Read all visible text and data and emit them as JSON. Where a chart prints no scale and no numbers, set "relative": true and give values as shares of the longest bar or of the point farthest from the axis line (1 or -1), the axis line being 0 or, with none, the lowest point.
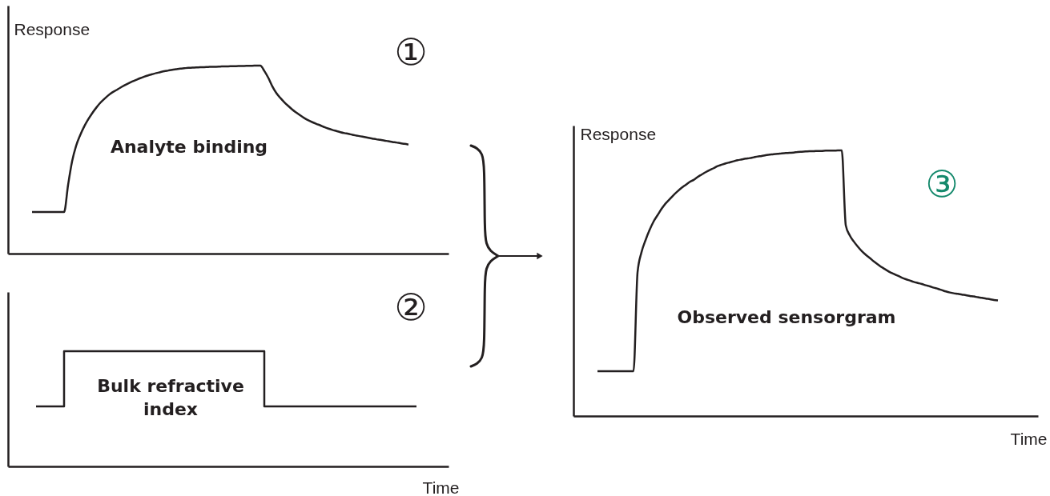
{
  "chart_data": [
    {
      "type": "line",
      "relative": true,
      "tick_labels": false,
      "ylabel": "Response",
      "annotations": [
        "①",
        "Analyte binding"
      ],
      "categories": [
        null,
        null,
        null,
        null,
        null,
        null,
        null,
        null,
        null,
        null,
        null,
        null,
        null,
        null,
        null,
        null,
        null,
        null,
        null,
        null,
        null,
        null,
        null,
        null,
        null,
        null,
        null,
        null,
        null,
        null,
        null,
        null,
        null,
        null,
        null,
        null,
        null,
        null,
        null,
        null,
        null,
        null,
        null,
        null,
        null,
        null,
        null,
        null,
        null,
        null,
        null,
        null,
        null,
        null,
        null,
        null,
        null,
        null,
        null,
        null,
        null,
        null,
        null,
        null,
        null,
        null,
        null,
        null,
        null,
        null,
        null,
        null,
        null,
        null,
        null,
        null,
        null,
        null,
        null,
        null,
        null,
        null,
        null,
        null,
        null,
        null,
        null,
        null,
        null,
        null,
        null,
        null,
        null,
        null,
        null,
        null,
        null,
        null,
        null,
        null,
        null,
        null,
        null,
        null,
        null,
        null,
        null,
        null,
        null,
        null,
        null
      ],
      "series": [
        {
          "color": "#231f20",
          "values": [
            null,
            null,
            null,
            null,
            null,
            null,
            0.221,
            0.221,
            0.221,
            0.221,
            0.221,
            0.221,
            0.221,
            0.221,
            0.221,
            0.365,
            0.49,
            0.573,
            0.629,
            0.675,
            0.713,
            0.746,
            0.775,
            0.801,
            0.822,
            0.841,
            0.857,
            0.869,
            0.882,
            0.894,
            0.905,
            0.915,
            0.924,
            0.933,
            0.941,
            0.948,
            0.954,
            0.96,
            0.965,
            0.97,
            0.974,
            0.978,
            0.981,
            0.984,
            0.986,
            0.988,
            0.989,
            0.99,
            0.991,
            0.992,
            0.993,
            0.994,
            0.994,
            0.995,
            0.996,
            0.996,
            0.997,
            0.997,
            0.998,
            0.998,
            0.999,
            0.999,
            1,
            1,
            0.972,
            0.935,
            0.89,
            0.854,
            0.828,
            0.805,
            0.785,
            0.766,
            0.75,
            0.735,
            0.721,
            0.709,
            0.699,
            0.69,
            0.682,
            0.673,
            0.665,
            0.658,
            0.652,
            0.646,
            0.641,
            0.637,
            0.632,
            0.628,
            0.624,
            0.62,
            0.616,
            0.612,
            0.608,
            0.605,
            0.601,
            0.598,
            0.594,
            0.591,
            0.587,
            0.584,
            0.58,
            null,
            null,
            null,
            null,
            null,
            null,
            null,
            null,
            null,
            null
          ]
        }
      ]
    },
    {
      "type": "step",
      "relative": true,
      "tick_labels": false,
      "xlabel": "Time",
      "annotations": [
        "②",
        "Bulk refractive\nindex"
      ],
      "categories": [
        null,
        null,
        null,
        null,
        null,
        null,
        null,
        null,
        null,
        null,
        null,
        null,
        null,
        null,
        null,
        null,
        null,
        null,
        null,
        null,
        null,
        null,
        null,
        null,
        null,
        null,
        null,
        null,
        null,
        null,
        null,
        null,
        null,
        null,
        null,
        null,
        null,
        null,
        null,
        null,
        null,
        null,
        null,
        null,
        null,
        null,
        null,
        null,
        null,
        null,
        null,
        null,
        null,
        null,
        null,
        null,
        null,
        null,
        null,
        null,
        null,
        null,
        null,
        null,
        null,
        null,
        null,
        null,
        null,
        null,
        null,
        null,
        null,
        null,
        null,
        null,
        null,
        null,
        null,
        null,
        null,
        null,
        null,
        null,
        null,
        null,
        null,
        null,
        null,
        null,
        null,
        null,
        null,
        null,
        null,
        null,
        null,
        null,
        null,
        null,
        null,
        null,
        null,
        null,
        null,
        null,
        null,
        null,
        null,
        null,
        null
      ],
      "series": [
        {
          "color": "#231f20",
          "values": [
            null,
            null,
            null,
            null,
            null,
            null,
            null,
            0.52,
            0.52,
            0.52,
            0.52,
            0.52,
            0.52,
            0.52,
            1,
            1,
            1,
            1,
            1,
            1,
            1,
            1,
            1,
            1,
            1,
            1,
            1,
            1,
            1,
            1,
            1,
            1,
            1,
            1,
            1,
            1,
            1,
            1,
            1,
            1,
            1,
            1,
            1,
            1,
            1,
            1,
            1,
            1,
            1,
            1,
            1,
            1,
            1,
            1,
            1,
            1,
            1,
            1,
            1,
            1,
            1,
            1,
            1,
            1,
            0.52,
            0.52,
            0.52,
            0.52,
            0.52,
            0.52,
            0.52,
            0.52,
            0.52,
            0.52,
            0.52,
            0.52,
            0.52,
            0.52,
            0.52,
            0.52,
            0.52,
            0.52,
            0.52,
            0.52,
            0.52,
            0.52,
            0.52,
            0.52,
            0.52,
            0.52,
            0.52,
            0.52,
            0.52,
            0.52,
            0.52,
            0.52,
            0.52,
            0.52,
            0.52,
            0.52,
            0.52,
            0.52,
            0.52,
            null,
            null,
            null,
            null,
            null,
            null,
            null,
            null
          ]
        }
      ]
    },
    {
      "type": "line",
      "relative": true,
      "tick_labels": false,
      "ylabel": "Response",
      "xlabel": "Time",
      "annotations": [
        "③",
        "Observed sensorgram"
      ],
      "categories": [
        null,
        null,
        null,
        null,
        null,
        null,
        null,
        null,
        null,
        null,
        null,
        null,
        null,
        null,
        null,
        null,
        null,
        null,
        null,
        null,
        null,
        null,
        null,
        null,
        null,
        null,
        null,
        null,
        null,
        null,
        null,
        null,
        null,
        null,
        null,
        null,
        null,
        null,
        null,
        null,
        null,
        null,
        null,
        null,
        null,
        null,
        null,
        null,
        null,
        null,
        null,
        null,
        null,
        null,
        null,
        null,
        null,
        null,
        null,
        null,
        null,
        null,
        null,
        null,
        null,
        null,
        null,
        null,
        null,
        null,
        null,
        null,
        null,
        null,
        null,
        null,
        null,
        null,
        null,
        null,
        null,
        null,
        null,
        null,
        null,
        null,
        null,
        null,
        null,
        null,
        null,
        null,
        null,
        null,
        null,
        null,
        null,
        null,
        null,
        null,
        null,
        null,
        null,
        null,
        null,
        null,
        null,
        null,
        null,
        null,
        null,
        null,
        null,
        null,
        null,
        null,
        null
      ],
      "series": [
        {
          "color": "#231f20",
          "values": [
            null,
            null,
            null,
            null,
            null,
            null,
            0.169,
            0.169,
            0.169,
            0.169,
            0.169,
            0.169,
            0.169,
            0.169,
            0.169,
            0.169,
            0.54,
            0.617,
            0.662,
            0.7,
            0.732,
            0.756,
            0.78,
            0.8,
            0.816,
            0.832,
            0.846,
            0.859,
            0.87,
            0.881,
            0.889,
            0.9,
            0.909,
            0.918,
            0.926,
            0.933,
            0.941,
            0.946,
            0.951,
            0.955,
            0.959,
            0.963,
            0.966,
            0.969,
            0.971,
            0.974,
            0.977,
            0.979,
            0.982,
            0.984,
            0.986,
            0.987,
            0.989,
            0.99,
            0.991,
            0.992,
            0.994,
            0.995,
            0.996,
            0.997,
            0.997,
            0.998,
            0.998,
            0.999,
            0.999,
            0.999,
            1,
            1,
            0.718,
            0.68,
            0.657,
            0.638,
            0.621,
            0.607,
            0.595,
            0.582,
            0.571,
            0.56,
            0.551,
            0.542,
            0.535,
            0.528,
            0.521,
            0.515,
            0.51,
            0.505,
            0.501,
            0.497,
            0.492,
            0.488,
            0.483,
            0.479,
            0.474,
            0.469,
            0.465,
            0.462,
            0.46,
            0.457,
            0.455,
            0.452,
            0.45,
            0.447,
            0.445,
            0.442,
            0.44,
            0.437,
            0.435,
            null,
            null,
            null,
            null,
            null,
            null,
            null,
            null,
            null,
            null
          ]
        }
      ]
    }
  ]
}
